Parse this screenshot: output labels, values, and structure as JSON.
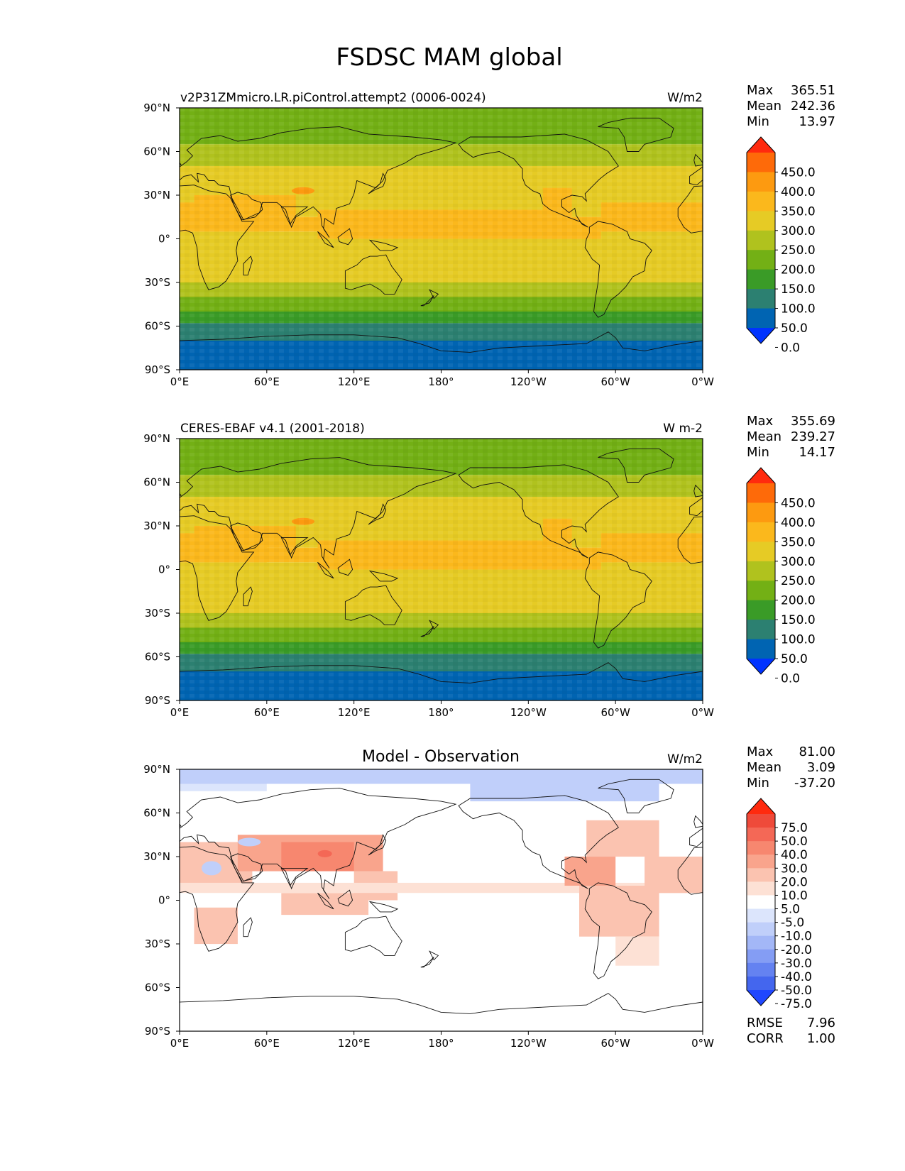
{
  "title": "FSDSC MAM global",
  "lon_ticks": [
    "0°E",
    "60°E",
    "120°E",
    "180°",
    "120°W",
    "60°W",
    "0°W"
  ],
  "lat_ticks": [
    "90°N",
    "60°N",
    "30°N",
    "0°",
    "30°S",
    "60°S",
    "90°S"
  ],
  "panels": [
    {
      "left_title": "v2P31ZMmicro.LR.piControl.attempt2 (0006-0024)",
      "center_title": "",
      "units": "W/m2",
      "stats": [
        {
          "label": "Max",
          "value": "365.51"
        },
        {
          "label": "Mean",
          "value": "242.36"
        },
        {
          "label": "Min",
          "value": "13.97"
        }
      ],
      "extra_stats": []
    },
    {
      "left_title": "CERES-EBAF v4.1 (2001-2018)",
      "center_title": "",
      "units": "W m-2",
      "stats": [
        {
          "label": "Max",
          "value": "355.69"
        },
        {
          "label": "Mean",
          "value": "239.27"
        },
        {
          "label": "Min",
          "value": "14.17"
        }
      ],
      "extra_stats": []
    },
    {
      "left_title": "",
      "center_title": "Model - Observation",
      "units": "W/m2",
      "stats": [
        {
          "label": "Max",
          "value": "81.00"
        },
        {
          "label": "Mean",
          "value": "3.09"
        },
        {
          "label": "Min",
          "value": "-37.20"
        }
      ],
      "extra_stats": [
        {
          "label": "RMSE",
          "value": "7.96"
        },
        {
          "label": "CORR",
          "value": "1.00"
        }
      ]
    }
  ],
  "colorbar_main": {
    "labels": [
      "450.0",
      "400.0",
      "350.0",
      "300.0",
      "250.0",
      "200.0",
      "150.0",
      "100.0",
      "50.0",
      "0.0"
    ],
    "colors": [
      "#ff2a0e",
      "#fe6a09",
      "#fd9a10",
      "#fbb81c",
      "#e6cb25",
      "#b0c21e",
      "#73b015",
      "#3a9b27",
      "#2c8071",
      "#0064b2",
      "#0033ff"
    ]
  },
  "colorbar_diff": {
    "labels": [
      "75.0",
      "50.0",
      "40.0",
      "30.0",
      "20.0",
      "10.0",
      "5.0",
      "-5.0",
      "-10.0",
      "-20.0",
      "-30.0",
      "-40.0",
      "-50.0",
      "-75.0"
    ],
    "colors": [
      "#ff2a0e",
      "#ef4a3a",
      "#f46856",
      "#f7876f",
      "#f9a48c",
      "#fbc3b0",
      "#fde1d5",
      "#ffffff",
      "#dce5fc",
      "#c0cffa",
      "#a3b7f7",
      "#849df4",
      "#6482f1",
      "#4466ee",
      "#2047ff"
    ]
  },
  "chart_data": [
    {
      "type": "heatmap",
      "subtitle": "v2P31ZMmicro.LR.piControl.attempt2 (0006-0024)",
      "units": "W/m2",
      "xlim": [
        0,
        360
      ],
      "ylim": [
        -90,
        90
      ],
      "zonal_bands": [
        {
          "lat": [
            80,
            90
          ],
          "value": 175
        },
        {
          "lat": [
            65,
            80
          ],
          "value": 175
        },
        {
          "lat": [
            50,
            65
          ],
          "value": 225
        },
        {
          "lat": [
            15,
            50
          ],
          "value": 275
        },
        {
          "lat": [
            5,
            15
          ],
          "value": 325
        },
        {
          "lat": [
            -20,
            5
          ],
          "value": 275
        },
        {
          "lat": [
            -30,
            -20
          ],
          "value": 275
        },
        {
          "lat": [
            -40,
            -30
          ],
          "value": 225
        },
        {
          "lat": [
            -50,
            -40
          ],
          "value": 175
        },
        {
          "lat": [
            -58,
            -50
          ],
          "value": 125
        },
        {
          "lat": [
            -70,
            -58
          ],
          "value": 75
        },
        {
          "lat": [
            -90,
            -70
          ],
          "value": 25
        }
      ],
      "stats": {
        "max": 365.51,
        "mean": 242.36,
        "min": 13.97
      }
    },
    {
      "type": "heatmap",
      "subtitle": "CERES-EBAF v4.1 (2001-2018)",
      "units": "W m-2",
      "xlim": [
        0,
        360
      ],
      "ylim": [
        -90,
        90
      ],
      "zonal_bands": [
        {
          "lat": [
            80,
            90
          ],
          "value": 175
        },
        {
          "lat": [
            65,
            80
          ],
          "value": 175
        },
        {
          "lat": [
            50,
            65
          ],
          "value": 225
        },
        {
          "lat": [
            15,
            50
          ],
          "value": 275
        },
        {
          "lat": [
            5,
            15
          ],
          "value": 325
        },
        {
          "lat": [
            -20,
            5
          ],
          "value": 275
        },
        {
          "lat": [
            -30,
            -20
          ],
          "value": 275
        },
        {
          "lat": [
            -40,
            -30
          ],
          "value": 225
        },
        {
          "lat": [
            -50,
            -40
          ],
          "value": 175
        },
        {
          "lat": [
            -58,
            -50
          ],
          "value": 125
        },
        {
          "lat": [
            -70,
            -58
          ],
          "value": 75
        },
        {
          "lat": [
            -90,
            -70
          ],
          "value": 25
        }
      ],
      "stats": {
        "max": 355.69,
        "mean": 239.27,
        "min": 14.17
      }
    },
    {
      "type": "heatmap",
      "subtitle": "Model - Observation",
      "units": "W/m2",
      "xlim": [
        0,
        360
      ],
      "ylim": [
        -90,
        90
      ],
      "stats": {
        "max": 81.0,
        "mean": 3.09,
        "min": -37.2,
        "rmse": 7.96,
        "corr": 1.0
      }
    }
  ]
}
